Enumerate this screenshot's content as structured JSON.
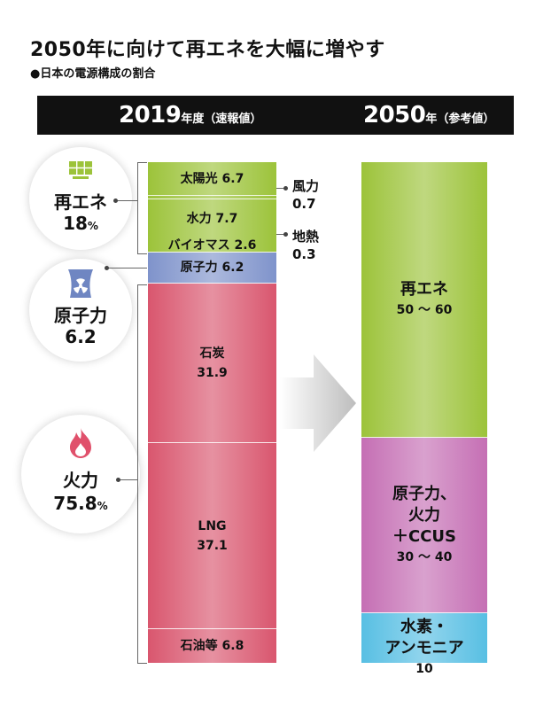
{
  "title": "2050年に向けて再エネを大幅に増やす",
  "subtitle": "●日本の電源構成の割合",
  "headers": {
    "left": {
      "year": "2019",
      "label": "年度（速報値）"
    },
    "right": {
      "year": "2050",
      "label": "年（参考値）"
    }
  },
  "categories": [
    {
      "label": "再エネ",
      "value": "18",
      "unit": "%",
      "icon": "solar-panel-icon"
    },
    {
      "label": "原子力",
      "value": "6.2",
      "unit": "",
      "icon": "nuclear-plant-icon"
    },
    {
      "label": "火力",
      "value": "75.8",
      "unit": "%",
      "icon": "flame-icon"
    }
  ],
  "colors": {
    "renewable": "#9cc33a",
    "nuclear": "#7f93cb",
    "thermal": "#d9566e",
    "mixed": "#c56fb4",
    "hydrogen": "#58bfe3"
  },
  "chart_data": {
    "type": "bar",
    "stacked": true,
    "unit": "%",
    "bars": [
      {
        "label": "2019",
        "segments": [
          {
            "name": "太陽光",
            "value": 6.7,
            "group": "renewable"
          },
          {
            "name": "風力",
            "value": 0.7,
            "group": "renewable",
            "label_outside": true
          },
          {
            "name": "水力",
            "value": 7.7,
            "group": "renewable"
          },
          {
            "name": "地熱",
            "value": 0.3,
            "group": "renewable",
            "label_outside": true
          },
          {
            "name": "バイオマス",
            "value": 2.6,
            "group": "renewable"
          },
          {
            "name": "原子力",
            "value": 6.2,
            "group": "nuclear"
          },
          {
            "name": "石炭",
            "value": 31.9,
            "group": "thermal"
          },
          {
            "name": "LNG",
            "value": 37.1,
            "group": "thermal"
          },
          {
            "name": "石油等",
            "value": 6.8,
            "group": "thermal"
          }
        ]
      },
      {
        "label": "2050",
        "segments": [
          {
            "name": "再エネ",
            "value_text": "50 ～ 60",
            "value": 55,
            "group": "renewable"
          },
          {
            "name": "原子力、\n火力\n＋CCUS",
            "value_text": "30 ～ 40",
            "value": 35,
            "group": "mixed"
          },
          {
            "name": "水素・\nアンモニア",
            "value_text": "10",
            "value": 10,
            "group": "hydrogen"
          }
        ]
      }
    ]
  }
}
